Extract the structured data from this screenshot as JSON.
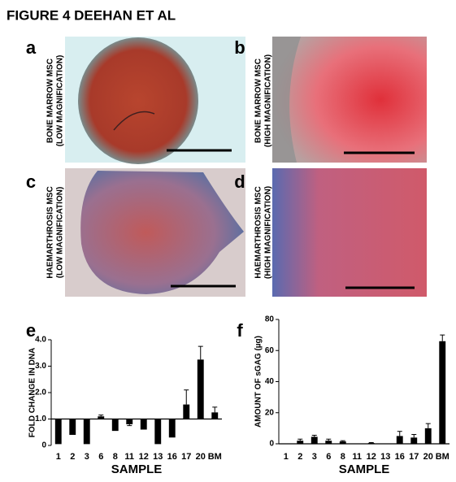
{
  "title": "FIGURE 4 DEEHAN ET AL",
  "panels": [
    {
      "letter": "a",
      "caption": [
        "BONE MARROW MSC",
        "(LOW MAGNIFICATION)"
      ]
    },
    {
      "letter": "b",
      "caption": [
        "BONE MARROW MSC",
        "(HIGH MAGNIFICATION)"
      ]
    },
    {
      "letter": "c",
      "caption": [
        "HAEMARTHROSIS MSC",
        "(LOW MAGNIFICATION)"
      ]
    },
    {
      "letter": "d",
      "caption": [
        "HAEMARTHROSIS MSC",
        "(HIGH MAGNIFICATION)"
      ]
    }
  ],
  "chart_data": [
    {
      "type": "bar",
      "letter": "e",
      "ylabel": "FOLD CHANGE IN DNA",
      "xlabel": "SAMPLE",
      "categories": [
        "1",
        "2",
        "3",
        "6",
        "8",
        "11",
        "12",
        "13",
        "16",
        "17",
        "20",
        "BM"
      ],
      "values": [
        0.05,
        0.4,
        0.05,
        1.1,
        0.55,
        0.8,
        0.6,
        0.05,
        0.3,
        1.55,
        3.25,
        1.25
      ],
      "errors": [
        0,
        0,
        0,
        0.05,
        0,
        0.05,
        0,
        0,
        0,
        0.55,
        0.5,
        0.2
      ],
      "bar_base": 1,
      "color": "#000000",
      "ylim": [
        0,
        4
      ],
      "yticks": [
        0,
        {
          "value": 1,
          "label": "1.0"
        },
        {
          "value": 2,
          "label": "2.0"
        },
        {
          "value": 3,
          "label": "3.0"
        },
        {
          "value": 4,
          "label": "4.0"
        }
      ]
    },
    {
      "type": "bar",
      "letter": "f",
      "ylabel": "AMOUNT OF sGAG (µg)",
      "xlabel": "SAMPLE",
      "categories": [
        "1",
        "2",
        "3",
        "6",
        "8",
        "11",
        "12",
        "13",
        "16",
        "17",
        "20",
        "BM"
      ],
      "values": [
        0,
        2,
        4.5,
        2,
        1.5,
        0,
        0.5,
        0,
        5,
        4,
        10,
        66
      ],
      "errors": [
        0,
        1,
        1,
        1,
        0.5,
        0,
        0.3,
        0,
        3,
        2,
        3,
        4
      ],
      "bar_base": 0,
      "color": "#000000",
      "ylim": [
        0,
        80
      ],
      "yticks": [
        0,
        20,
        40,
        60,
        80
      ]
    }
  ]
}
